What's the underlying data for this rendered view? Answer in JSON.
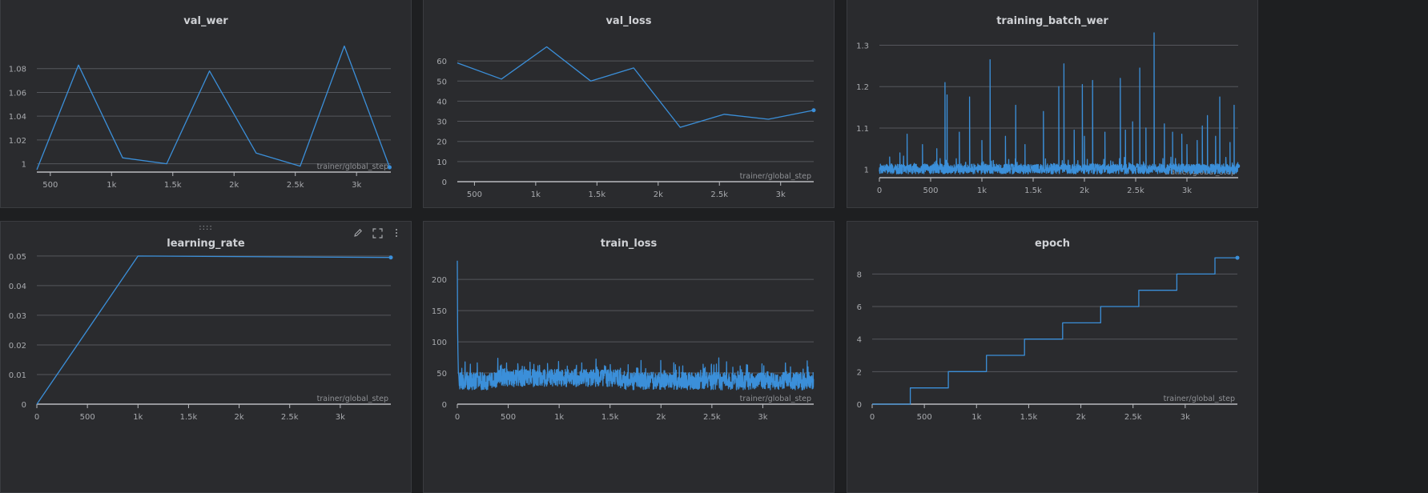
{
  "colors": {
    "line": "#3b8fd9",
    "grid": "#55575c",
    "axis": "#b9bbbf",
    "tick_text": "#a8aaae",
    "background": "#2a2b2e"
  },
  "icons": [
    "drag-handle-icon",
    "edit-pencil-icon",
    "fullscreen-icon",
    "more-options-icon"
  ],
  "panel_tools": {
    "drag_label": "::::"
  },
  "chart_data": [
    {
      "id": "val_wer",
      "type": "line",
      "title": "val_wer",
      "xlabel": "trainer/global_step",
      "ylabel": "",
      "xlim": [
        390,
        3280
      ],
      "ylim": [
        0.993,
        1.1
      ],
      "x_ticks": [
        500,
        1000,
        1500,
        2000,
        2500,
        3000
      ],
      "x_tick_labels": [
        "500",
        "1k",
        "1.5k",
        "2k",
        "2.5k",
        "3k"
      ],
      "y_ticks": [
        1,
        1.02,
        1.04,
        1.06,
        1.08
      ],
      "y_tick_labels": [
        "1",
        "1.02",
        "1.04",
        "1.06",
        "1.08"
      ],
      "grid": true,
      "end_marker": true,
      "series": [
        {
          "x": [
            390,
            730,
            1090,
            1450,
            1800,
            2180,
            2540,
            2900,
            3270
          ],
          "y": [
            0.995,
            1.083,
            1.005,
            1.0,
            1.078,
            1.009,
            0.998,
            1.099,
            0.997
          ]
        }
      ]
    },
    {
      "id": "val_loss",
      "type": "line",
      "title": "val_loss",
      "xlabel": "trainer/global_step",
      "ylabel": "",
      "xlim": [
        360,
        3270
      ],
      "ylim": [
        0,
        68
      ],
      "x_ticks": [
        500,
        1000,
        1500,
        2000,
        2500,
        3000
      ],
      "x_tick_labels": [
        "500",
        "1k",
        "1.5k",
        "2k",
        "2.5k",
        "3k"
      ],
      "y_ticks": [
        0,
        10,
        20,
        30,
        40,
        50,
        60
      ],
      "y_tick_labels": [
        "0",
        "10",
        "20",
        "30",
        "40",
        "50",
        "60"
      ],
      "grid": true,
      "end_marker": true,
      "series": [
        {
          "x": [
            360,
            720,
            1090,
            1450,
            1800,
            2180,
            2540,
            2900,
            3270
          ],
          "y": [
            59,
            51,
            67,
            50,
            56.5,
            27,
            33.5,
            31,
            35.5
          ]
        }
      ]
    },
    {
      "id": "training_batch_wer",
      "type": "line",
      "title": "training_batch_wer",
      "xlabel": "trainer/global_step",
      "ylabel": "",
      "xlim": [
        0,
        3500
      ],
      "ylim": [
        0.98,
        1.33
      ],
      "x_ticks": [
        0,
        500,
        1000,
        1500,
        2000,
        2500,
        3000
      ],
      "x_tick_labels": [
        "0",
        "500",
        "1k",
        "1.5k",
        "2k",
        "2.5k",
        "3k"
      ],
      "y_ticks": [
        1,
        1.1,
        1.2,
        1.3
      ],
      "y_tick_labels": [
        "1",
        "1.1",
        "1.2",
        "1.3"
      ],
      "grid": true,
      "end_marker": true,
      "noise": {
        "n": 3500,
        "base": 1.0,
        "amp": 0.012,
        "seed": 7
      },
      "spikes": [
        [
          100,
          1.03
        ],
        [
          200,
          1.04
        ],
        [
          270,
          1.085
        ],
        [
          420,
          1.06
        ],
        [
          560,
          1.05
        ],
        [
          640,
          1.21
        ],
        [
          660,
          1.18
        ],
        [
          780,
          1.09
        ],
        [
          880,
          1.175
        ],
        [
          1000,
          1.07
        ],
        [
          1080,
          1.265
        ],
        [
          1230,
          1.08
        ],
        [
          1330,
          1.155
        ],
        [
          1420,
          1.06
        ],
        [
          1600,
          1.14
        ],
        [
          1750,
          1.2
        ],
        [
          1800,
          1.255
        ],
        [
          1900,
          1.095
        ],
        [
          1980,
          1.205
        ],
        [
          2000,
          1.08
        ],
        [
          2080,
          1.215
        ],
        [
          2200,
          1.09
        ],
        [
          2350,
          1.22
        ],
        [
          2400,
          1.095
        ],
        [
          2470,
          1.115
        ],
        [
          2540,
          1.245
        ],
        [
          2600,
          1.1
        ],
        [
          2680,
          1.33
        ],
        [
          2780,
          1.11
        ],
        [
          2860,
          1.09
        ],
        [
          2950,
          1.085
        ],
        [
          3000,
          1.06
        ],
        [
          3100,
          1.07
        ],
        [
          3150,
          1.105
        ],
        [
          3200,
          1.13
        ],
        [
          3280,
          1.08
        ],
        [
          3320,
          1.175
        ],
        [
          3420,
          1.065
        ],
        [
          3460,
          1.155
        ]
      ]
    },
    {
      "id": "learning_rate",
      "type": "line",
      "title": "learning_rate",
      "xlabel": "trainer/global_step",
      "ylabel": "",
      "xlim": [
        0,
        3500
      ],
      "ylim": [
        0,
        0.0505
      ],
      "x_ticks": [
        0,
        500,
        1000,
        1500,
        2000,
        2500,
        3000
      ],
      "x_tick_labels": [
        "0",
        "500",
        "1k",
        "1.5k",
        "2k",
        "2.5k",
        "3k"
      ],
      "y_ticks": [
        0,
        0.01,
        0.02,
        0.03,
        0.04,
        0.05
      ],
      "y_tick_labels": [
        "0",
        "0.01",
        "0.02",
        "0.03",
        "0.04",
        "0.05"
      ],
      "grid": true,
      "end_marker": true,
      "series": [
        {
          "x": [
            0,
            1000,
            3500
          ],
          "y": [
            0,
            0.05,
            0.0495
          ]
        }
      ]
    },
    {
      "id": "train_loss",
      "type": "line",
      "title": "train_loss",
      "xlabel": "trainer/global_step",
      "ylabel": "",
      "xlim": [
        0,
        3500
      ],
      "ylim": [
        0,
        240
      ],
      "x_ticks": [
        0,
        500,
        1000,
        1500,
        2000,
        2500,
        3000
      ],
      "x_tick_labels": [
        "0",
        "500",
        "1k",
        "1.5k",
        "2k",
        "2.5k",
        "3k"
      ],
      "y_ticks": [
        0,
        50,
        100,
        150,
        200
      ],
      "y_tick_labels": [
        "0",
        "50",
        "100",
        "150",
        "200"
      ],
      "grid": true,
      "end_marker": false,
      "noise": {
        "n": 3500,
        "base": 37,
        "amp": 14,
        "seed": 13
      },
      "head": [
        [
          0,
          230
        ],
        [
          3,
          118
        ],
        [
          6,
          82
        ],
        [
          10,
          52
        ],
        [
          15,
          45
        ]
      ]
    },
    {
      "id": "epoch",
      "type": "line",
      "title": "epoch",
      "xlabel": "trainer/global_step",
      "ylabel": "",
      "xlim": [
        0,
        3500
      ],
      "ylim": [
        0,
        9.2
      ],
      "x_ticks": [
        0,
        500,
        1000,
        1500,
        2000,
        2500,
        3000
      ],
      "x_tick_labels": [
        "0",
        "500",
        "1k",
        "1.5k",
        "2k",
        "2.5k",
        "3k"
      ],
      "y_ticks": [
        0,
        2,
        4,
        6,
        8
      ],
      "y_tick_labels": [
        "0",
        "2",
        "4",
        "6",
        "8"
      ],
      "grid": true,
      "end_marker": true,
      "step_changes": [
        365,
        730,
        1095,
        1460,
        1825,
        2190,
        2555,
        2920,
        3285
      ],
      "series": [
        {
          "x": [
            0,
            3500
          ],
          "y": [
            0,
            9
          ]
        }
      ]
    }
  ]
}
